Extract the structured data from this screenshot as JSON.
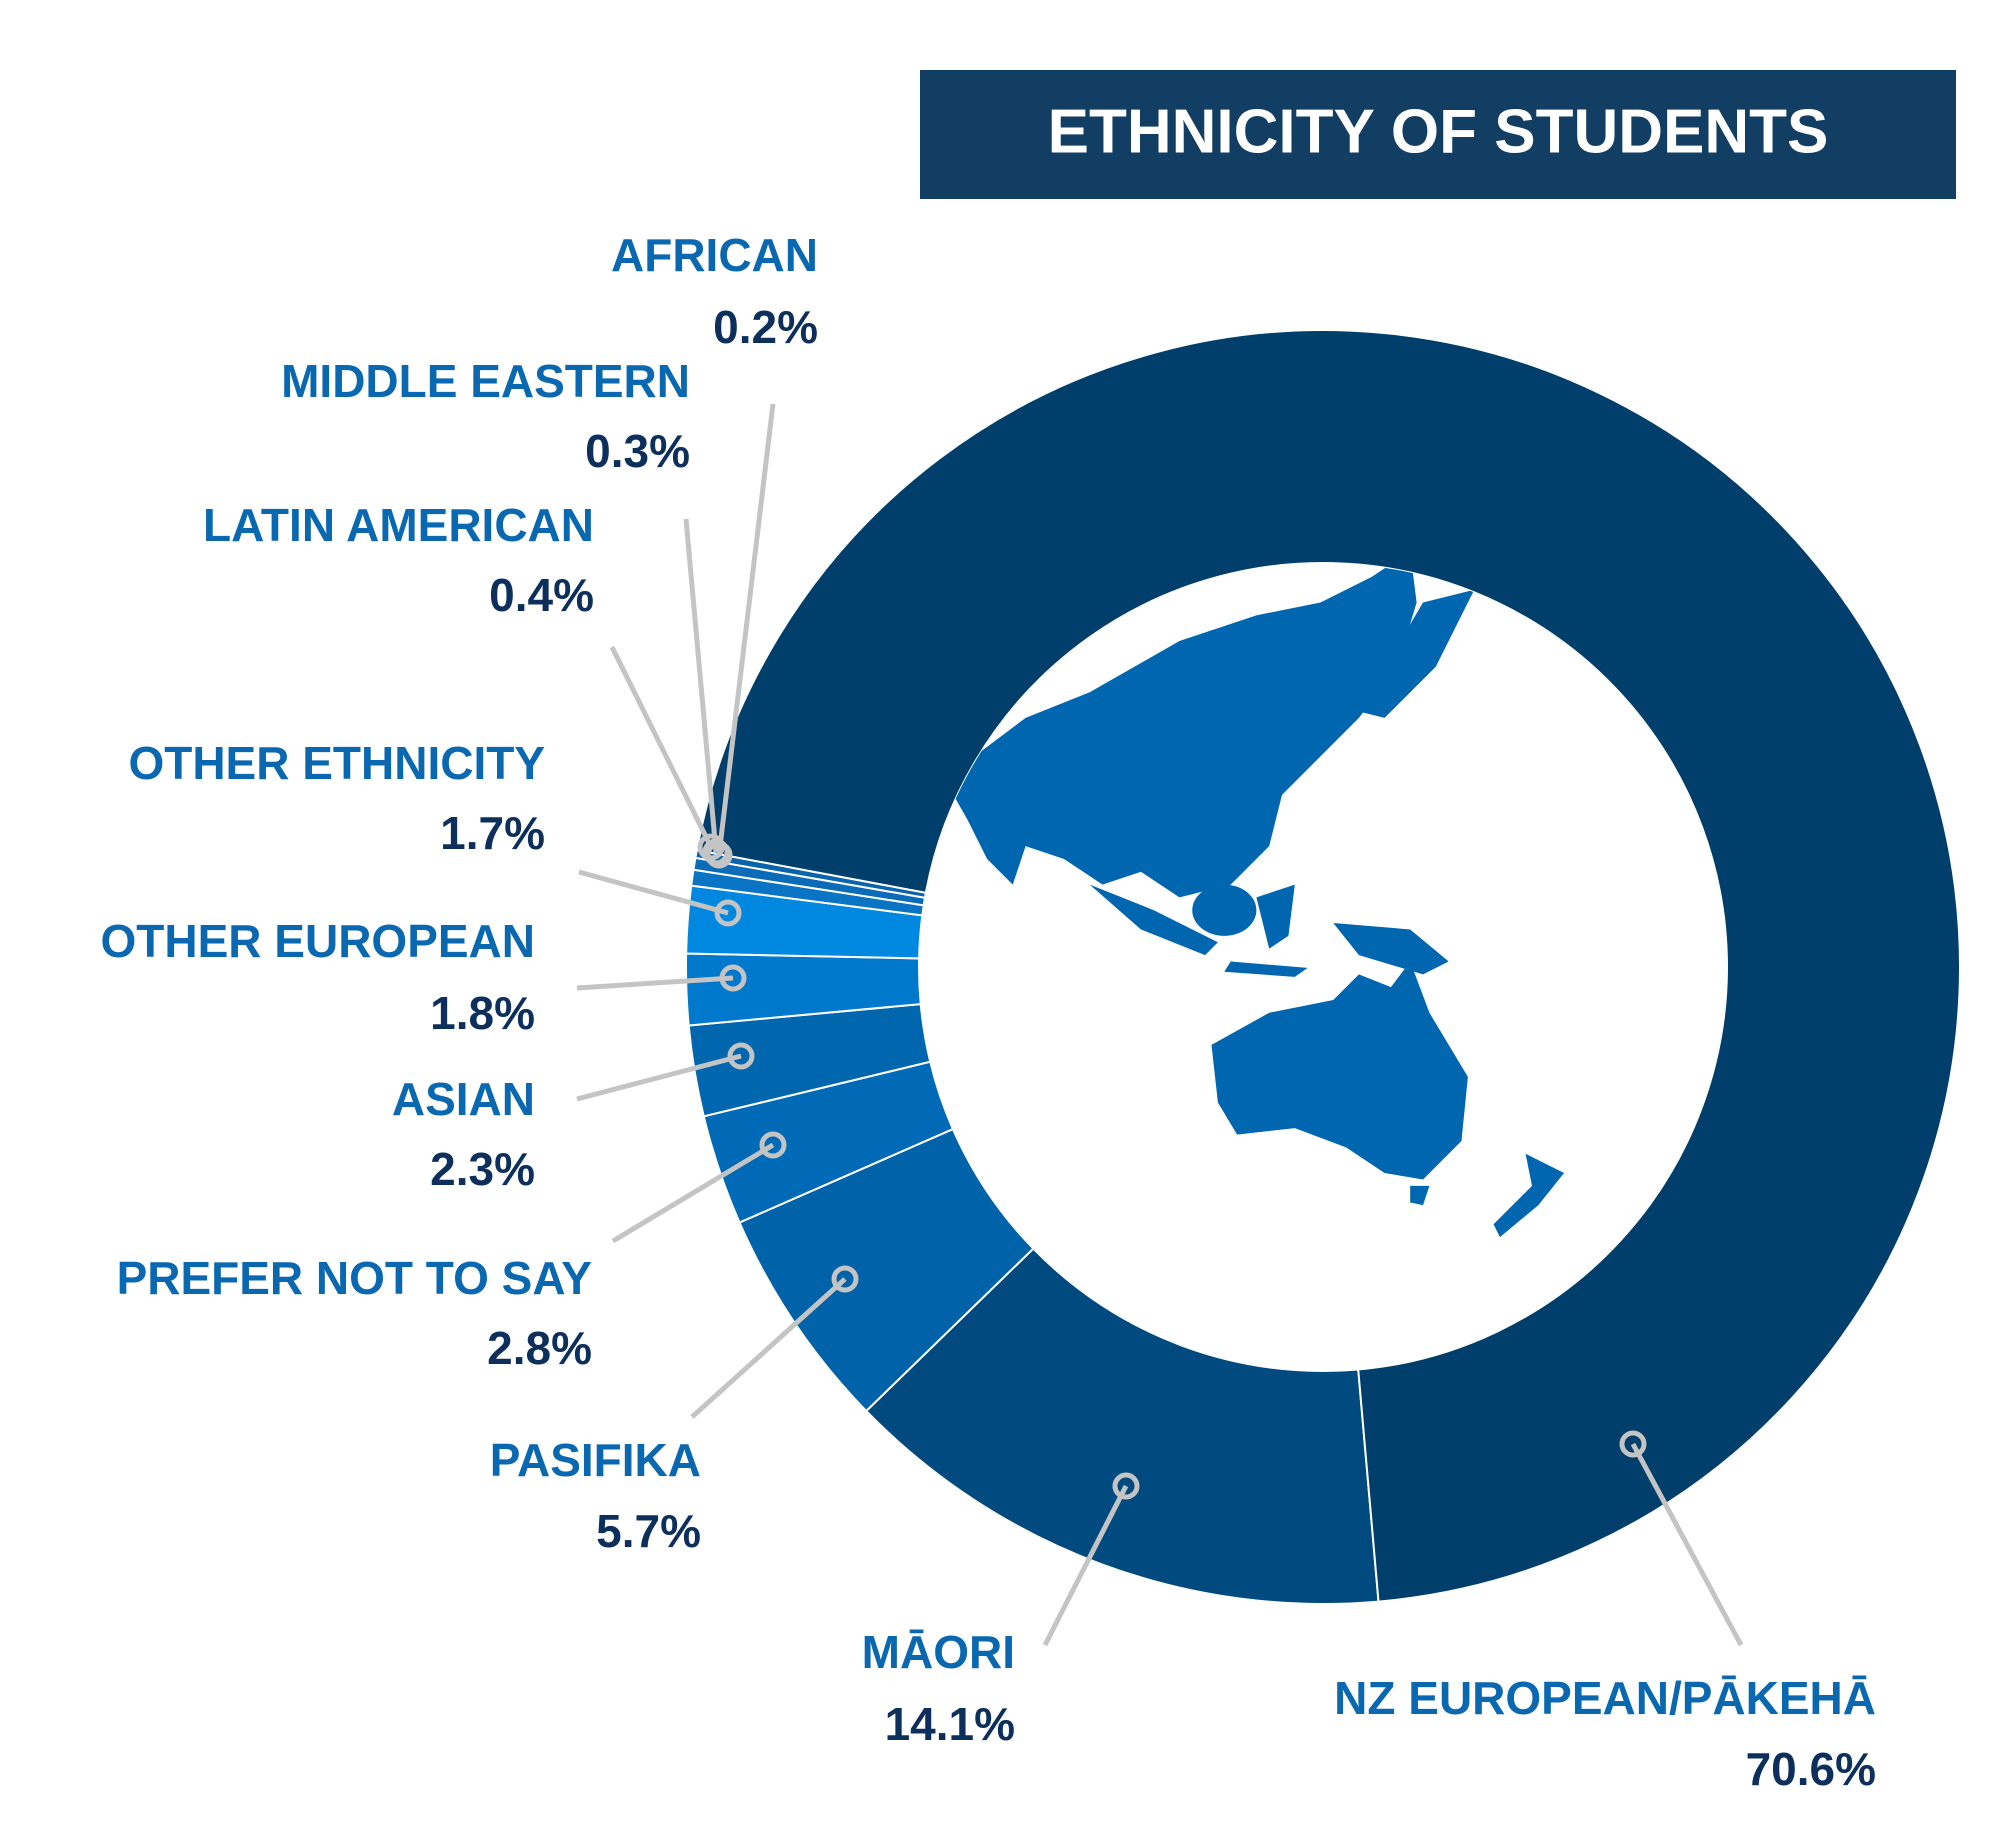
{
  "chart_data": {
    "type": "donut",
    "title": "ETHNICITY OF STUDENTS",
    "categories": [
      "MĀORI",
      "PASIFIKA",
      "PREFER NOT TO SAY",
      "ASIAN",
      "OTHER EUROPEAN",
      "OTHER ETHNICITY",
      "LATIN AMERICAN",
      "MIDDLE EASTERN",
      "AFRICAN",
      "NZ EUROPEAN/PĀKEHĀ"
    ],
    "values": [
      14.1,
      5.7,
      2.8,
      2.3,
      1.8,
      1.7,
      0.4,
      0.3,
      0.2,
      70.6
    ],
    "value_labels": [
      "14.1%",
      "5.7%",
      "2.8%",
      "2.3%",
      "1.8%",
      "1.7%",
      "0.4%",
      "0.3%",
      "0.2%",
      "70.6%"
    ],
    "colors": [
      "#004a80",
      "#0062a8",
      "#006ab6",
      "#0066ae",
      "#0078cc",
      "#0088e0",
      "#0a74c4",
      "#0a6cb8",
      "#0a64ac",
      "#003f6c"
    ]
  }
}
